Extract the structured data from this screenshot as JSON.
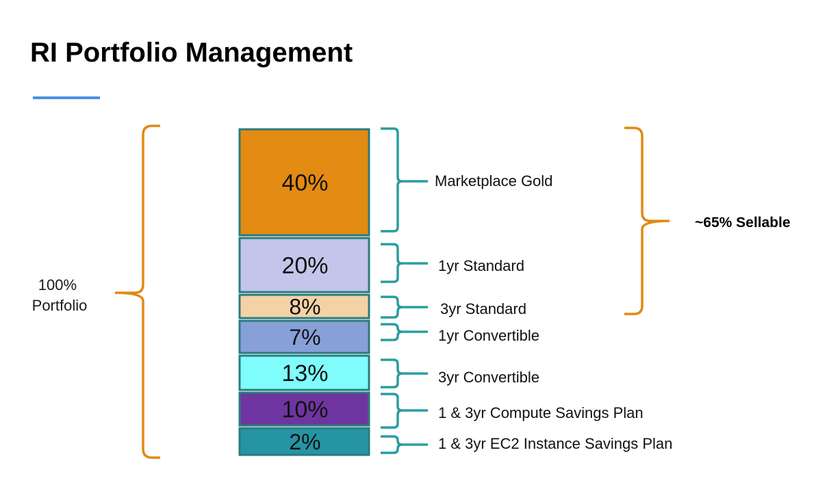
{
  "title": "RI Portfolio Management",
  "colors": {
    "accent_line": "#4a90e2",
    "orange_bracket": "#e08a13",
    "teal_bracket": "#2a9da0",
    "segment_border": "#2a7b7d"
  },
  "portfolio_label": {
    "line1": "100%",
    "line2": "Portfolio"
  },
  "sellable_label": "~65% Sellable",
  "segments": [
    {
      "value": 40,
      "percent_label": "40%",
      "name": "Marketplace Gold",
      "color": "#e38b12"
    },
    {
      "value": 20,
      "percent_label": "20%",
      "name": "1yr Standard",
      "color": "#c3c5ea"
    },
    {
      "value": 8,
      "percent_label": "8%",
      "name": "3yr Standard",
      "color": "#f4d2a6"
    },
    {
      "value": 7,
      "percent_label": "7%",
      "name": "1yr Convertible",
      "color": "#87a0d8"
    },
    {
      "value": 13,
      "percent_label": "13%",
      "name": "3yr Convertible",
      "color": "#7ffdfd"
    },
    {
      "value": 10,
      "percent_label": "10%",
      "name": "1 & 3yr Compute Savings Plan",
      "color": "#6e35a0"
    },
    {
      "value": 2,
      "percent_label": "2%",
      "name": "1 & 3yr EC2 Instance Savings Plan",
      "color": "#2594a4"
    }
  ]
}
